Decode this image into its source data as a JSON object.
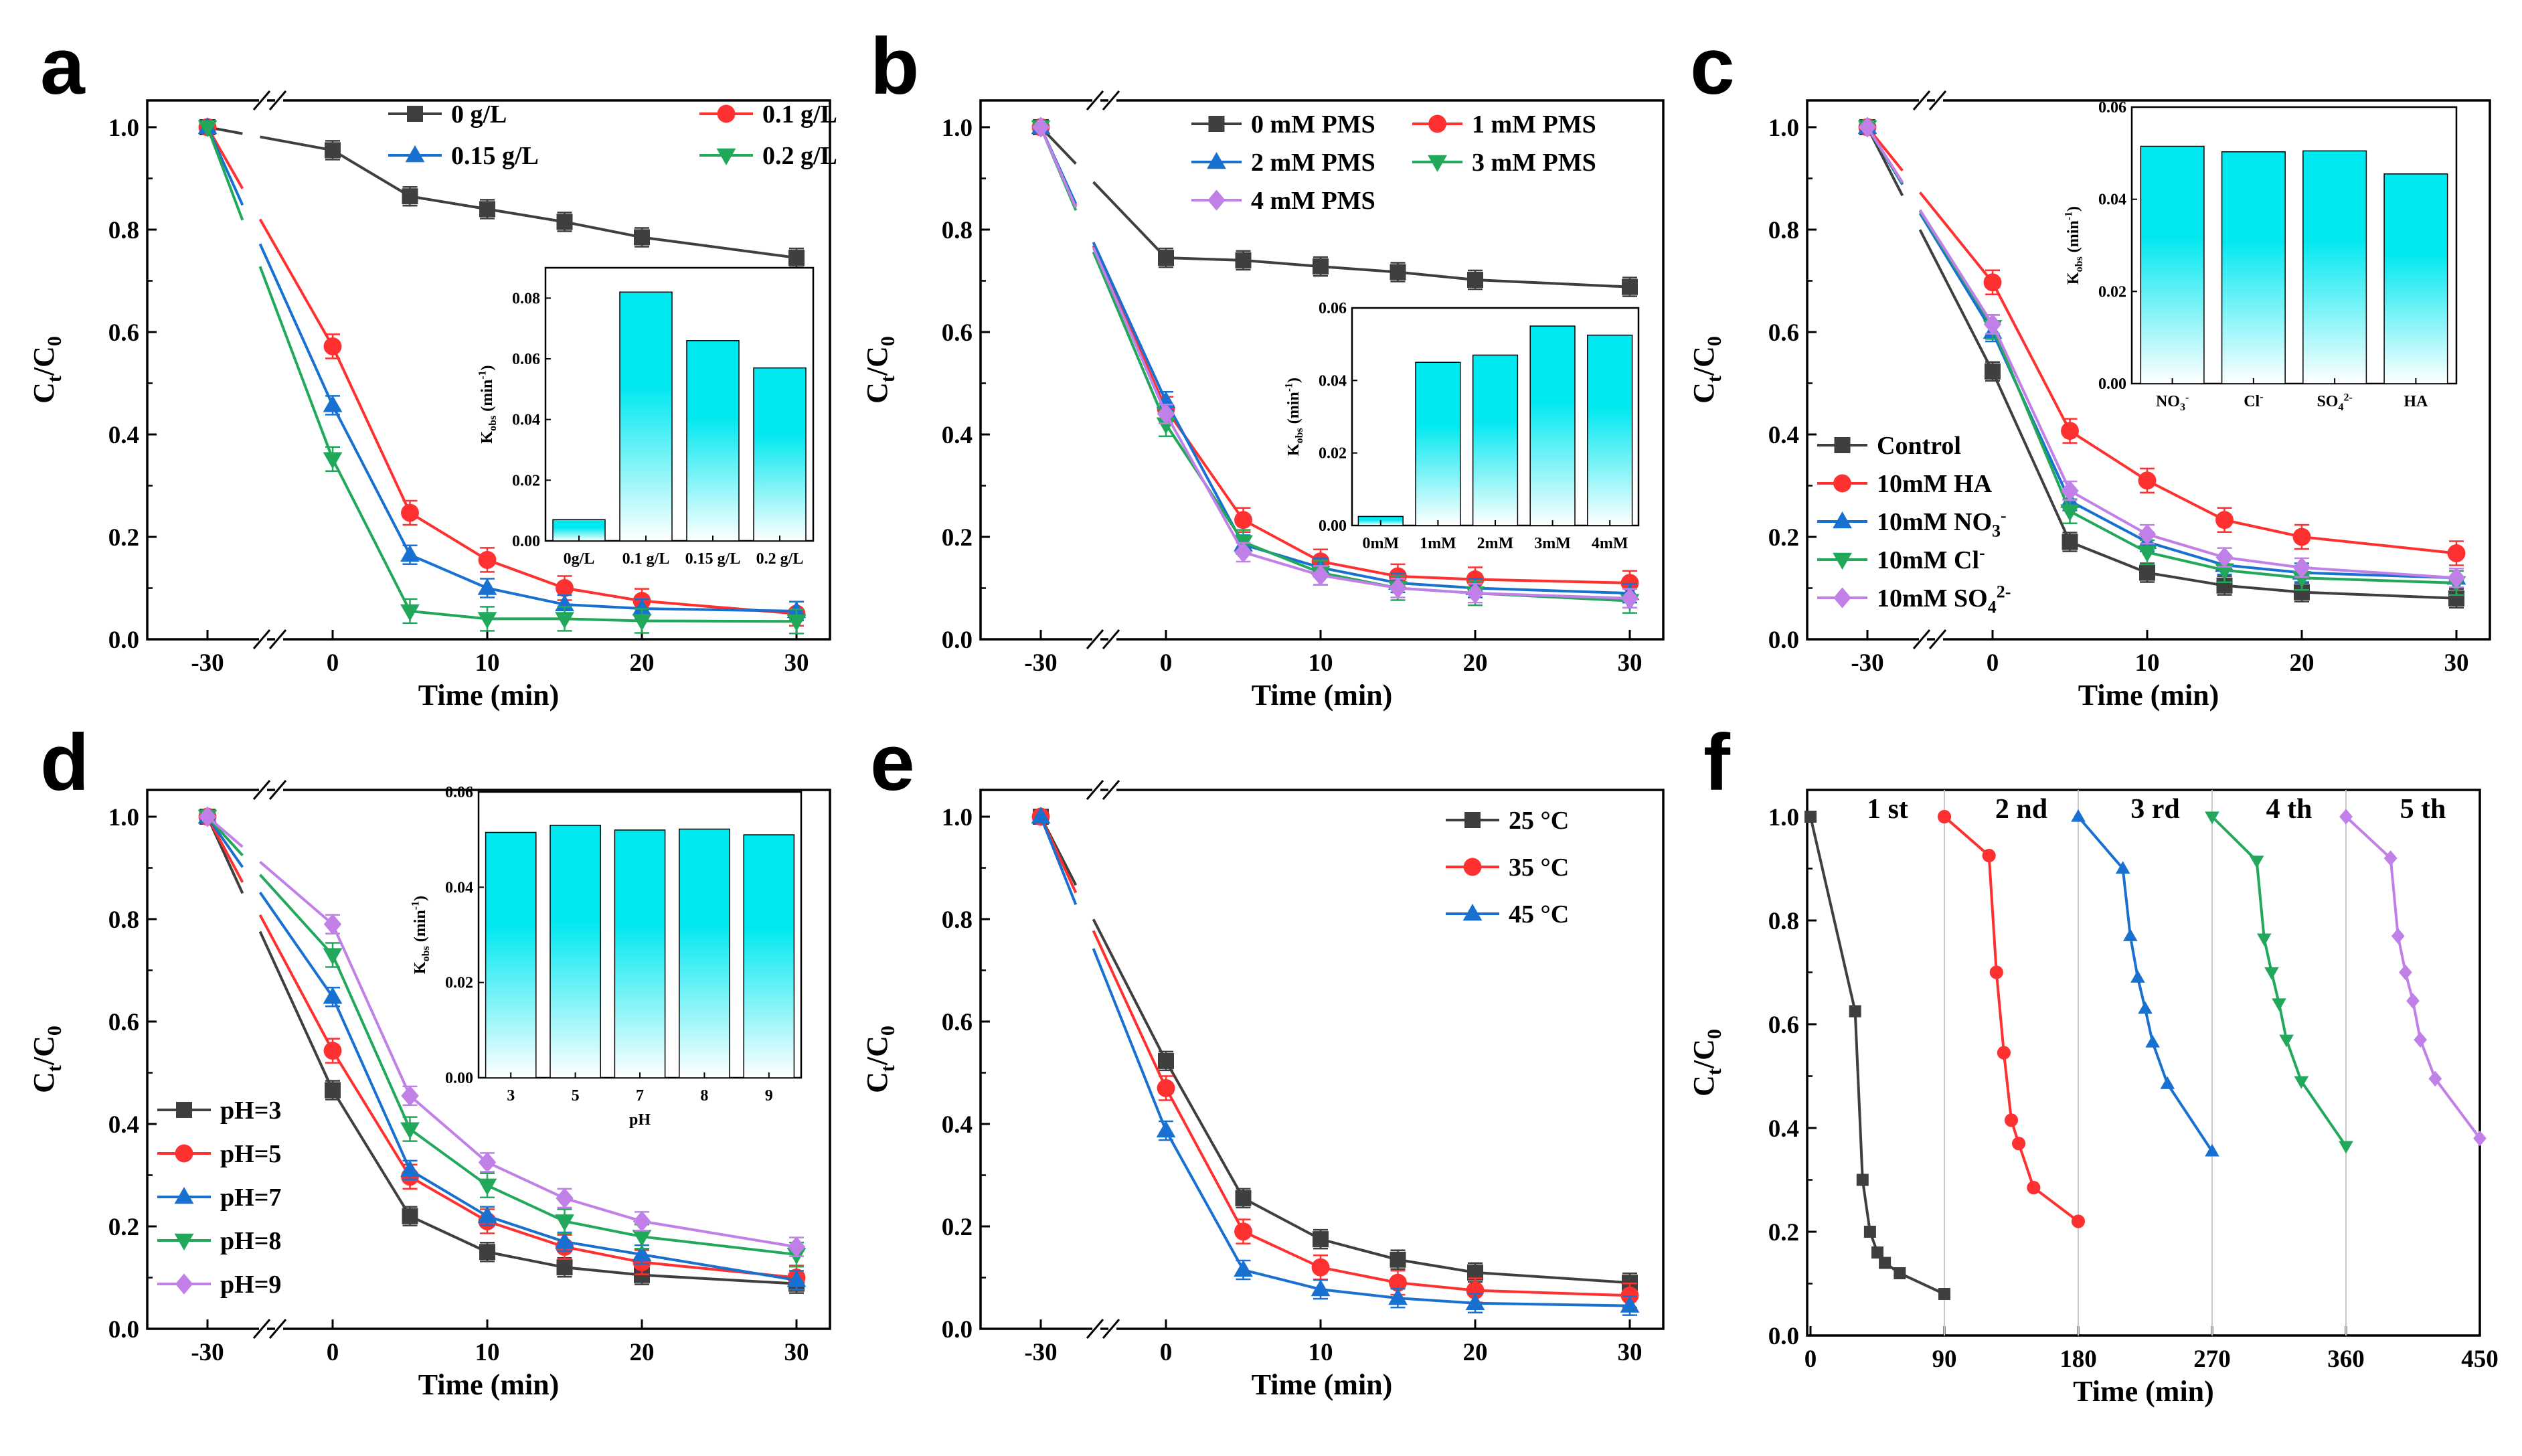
{
  "chart_data": [
    {
      "panel": "a",
      "type": "line",
      "xlabel": "Time (min)",
      "ylabel": "Ct/C0",
      "ylim": [
        0,
        1.0
      ],
      "x": [
        -30,
        0,
        5,
        10,
        15,
        20,
        30
      ],
      "x_ticks": [
        "-30",
        "0",
        "10",
        "20",
        "30"
      ],
      "y_ticks": [
        "0.0",
        "0.2",
        "0.4",
        "0.6",
        "0.8",
        "1.0"
      ],
      "legend": "top-right",
      "series": [
        {
          "name": "0     g/L",
          "color": "#3f3f3f",
          "marker": "square",
          "values": [
            1.0,
            0.955,
            0.865,
            0.84,
            0.815,
            0.785,
            0.745
          ]
        },
        {
          "name": "0.1    g/L",
          "color": "#ff3030",
          "marker": "circle",
          "values": [
            1.0,
            0.572,
            0.247,
            0.155,
            0.1,
            0.075,
            0.05
          ]
        },
        {
          "name": "0.15 g/L",
          "color": "#1870d0",
          "marker": "triangle-up",
          "values": [
            1.0,
            0.457,
            0.165,
            0.1,
            0.068,
            0.06,
            0.055
          ]
        },
        {
          "name": "0.2    g/L",
          "color": "#22a85a",
          "marker": "triangle-down",
          "values": [
            1.0,
            0.352,
            0.055,
            0.04,
            0.04,
            0.036,
            0.035
          ]
        }
      ],
      "inset": {
        "type": "bar",
        "ylabel": "Kobs (min-1)",
        "ylim": [
          0,
          0.09
        ],
        "y_ticks": [
          "0.00",
          "0.02",
          "0.04",
          "0.06",
          "0.08"
        ],
        "categories": [
          "0g/L",
          "0.1 g/L",
          "0.15 g/L",
          "0.2 g/L"
        ],
        "values": [
          0.007,
          0.082,
          0.066,
          0.057
        ]
      }
    },
    {
      "panel": "b",
      "type": "line",
      "xlabel": "Time (min)",
      "ylabel": "Ct/C0",
      "ylim": [
        0,
        1.0
      ],
      "x": [
        -30,
        0,
        5,
        10,
        15,
        20,
        30
      ],
      "x_ticks": [
        "-30",
        "0",
        "10",
        "20",
        "30"
      ],
      "y_ticks": [
        "0.0",
        "0.2",
        "0.4",
        "0.6",
        "0.8",
        "1.0"
      ],
      "legend": "top-right",
      "series": [
        {
          "name": "0 mM PMS",
          "color": "#3f3f3f",
          "marker": "square",
          "values": [
            1.0,
            0.745,
            0.74,
            0.728,
            0.717,
            0.702,
            0.688
          ]
        },
        {
          "name": "1 mM PMS",
          "color": "#ff3030",
          "marker": "circle",
          "values": [
            1.0,
            0.45,
            0.233,
            0.152,
            0.123,
            0.117,
            0.11
          ]
        },
        {
          "name": "2 mM PMS",
          "color": "#1870d0",
          "marker": "triangle-up",
          "values": [
            1.0,
            0.465,
            0.185,
            0.14,
            0.11,
            0.1,
            0.09
          ]
        },
        {
          "name": "3 mM PMS",
          "color": "#22a85a",
          "marker": "triangle-down",
          "values": [
            1.0,
            0.42,
            0.19,
            0.13,
            0.1,
            0.09,
            0.075
          ]
        },
        {
          "name": "4 mM PMS",
          "color": "#c080e8",
          "marker": "diamond",
          "values": [
            1.0,
            0.44,
            0.17,
            0.125,
            0.1,
            0.09,
            0.08
          ]
        }
      ],
      "inset": {
        "type": "bar",
        "ylabel": "Kobs (min-1)",
        "ylim": [
          0,
          0.06
        ],
        "y_ticks": [
          "0.00",
          "0.02",
          "0.04",
          "0.06"
        ],
        "categories": [
          "0mM",
          "1mM",
          "2mM",
          "3mM",
          "4mM"
        ],
        "values": [
          0.0025,
          0.045,
          0.047,
          0.055,
          0.0525
        ]
      }
    },
    {
      "panel": "c",
      "type": "line",
      "xlabel": "Time (min)",
      "ylabel": "Ct/C0",
      "ylim": [
        0,
        1.0
      ],
      "x": [
        -30,
        0,
        5,
        10,
        15,
        20,
        30
      ],
      "x_ticks": [
        "-30",
        "0",
        "10",
        "20",
        "30"
      ],
      "y_ticks": [
        "0.0",
        "0.2",
        "0.4",
        "0.6",
        "0.8",
        "1.0"
      ],
      "legend": "bottom-left",
      "series": [
        {
          "name": "Control",
          "color": "#3f3f3f",
          "marker": "square",
          "values": [
            1.0,
            0.523,
            0.19,
            0.13,
            0.105,
            0.092,
            0.08
          ]
        },
        {
          "name": "10mM HA",
          "color": "#ff3030",
          "marker": "circle",
          "values": [
            1.0,
            0.697,
            0.407,
            0.31,
            0.233,
            0.2,
            0.168
          ]
        },
        {
          "name": "10mM NO3-",
          "color": "#1870d0",
          "marker": "triangle-up",
          "values": [
            1.0,
            0.6,
            0.27,
            0.19,
            0.145,
            0.13,
            0.12
          ]
        },
        {
          "name": "10mM Cl-",
          "color": "#22a85a",
          "marker": "triangle-down",
          "values": [
            1.0,
            0.61,
            0.25,
            0.17,
            0.135,
            0.12,
            0.11
          ]
        },
        {
          "name": "10mM SO42-",
          "color": "#c080e8",
          "marker": "diamond",
          "values": [
            1.0,
            0.615,
            0.29,
            0.205,
            0.16,
            0.14,
            0.12
          ]
        }
      ],
      "inset": {
        "type": "bar",
        "ylabel": "Kobs (min-1)",
        "ylim": [
          0,
          0.06
        ],
        "y_ticks": [
          "0.00",
          "0.02",
          "0.04",
          "0.06"
        ],
        "categories": [
          "NO3-",
          "Cl-",
          "SO42-",
          "HA"
        ],
        "values": [
          0.0515,
          0.0503,
          0.0505,
          0.0455
        ]
      }
    },
    {
      "panel": "d",
      "type": "line",
      "xlabel": "Time (min)",
      "ylabel": "Ct/C0",
      "ylim": [
        0,
        1.0
      ],
      "x": [
        -30,
        0,
        5,
        10,
        15,
        20,
        30
      ],
      "x_ticks": [
        "-30",
        "0",
        "10",
        "20",
        "30"
      ],
      "y_ticks": [
        "0.0",
        "0.2",
        "0.4",
        "0.6",
        "0.8",
        "1.0"
      ],
      "legend": "bottom-left",
      "series": [
        {
          "name": "pH=3",
          "color": "#3f3f3f",
          "marker": "square",
          "values": [
            1.0,
            0.466,
            0.22,
            0.15,
            0.12,
            0.105,
            0.088
          ]
        },
        {
          "name": "pH=5",
          "color": "#ff3030",
          "marker": "circle",
          "values": [
            1.0,
            0.543,
            0.297,
            0.21,
            0.16,
            0.13,
            0.1
          ]
        },
        {
          "name": "pH=7",
          "color": "#1870d0",
          "marker": "triangle-up",
          "values": [
            1.0,
            0.648,
            0.31,
            0.22,
            0.17,
            0.145,
            0.095
          ]
        },
        {
          "name": "pH=8",
          "color": "#22a85a",
          "marker": "triangle-down",
          "values": [
            1.0,
            0.73,
            0.39,
            0.28,
            0.21,
            0.18,
            0.145
          ]
        },
        {
          "name": "pH=9",
          "color": "#c080e8",
          "marker": "diamond",
          "values": [
            1.0,
            0.79,
            0.455,
            0.325,
            0.255,
            0.21,
            0.16
          ]
        }
      ],
      "inset": {
        "type": "bar",
        "xlabel": "pH",
        "ylabel": "Kobs (min-1)",
        "ylim": [
          0,
          0.06
        ],
        "y_ticks": [
          "0.00",
          "0.02",
          "0.04",
          "0.06"
        ],
        "categories": [
          "3",
          "5",
          "7",
          "8",
          "9"
        ],
        "values": [
          0.0515,
          0.053,
          0.052,
          0.0522,
          0.051
        ]
      }
    },
    {
      "panel": "e",
      "type": "line",
      "xlabel": "Time (min)",
      "ylabel": "Ct/C0",
      "ylim": [
        0,
        1.0
      ],
      "x": [
        -30,
        0,
        5,
        10,
        15,
        20,
        30
      ],
      "x_ticks": [
        "-30",
        "0",
        "10",
        "20",
        "30"
      ],
      "y_ticks": [
        "0.0",
        "0.2",
        "0.4",
        "0.6",
        "0.8",
        "1.0"
      ],
      "legend": "top-right",
      "series": [
        {
          "name": "25 °C",
          "color": "#3f3f3f",
          "marker": "square",
          "values": [
            1.0,
            0.523,
            0.255,
            0.175,
            0.135,
            0.11,
            0.09
          ]
        },
        {
          "name": "35 °C",
          "color": "#ff3030",
          "marker": "circle",
          "values": [
            1.0,
            0.47,
            0.19,
            0.12,
            0.09,
            0.075,
            0.065
          ]
        },
        {
          "name": "45 °C",
          "color": "#1870d0",
          "marker": "triangle-up",
          "values": [
            1.0,
            0.387,
            0.115,
            0.077,
            0.06,
            0.05,
            0.045
          ]
        }
      ]
    },
    {
      "panel": "f",
      "type": "line",
      "xlabel": "Time (min)",
      "ylabel": "Ct/C0",
      "ylim": [
        0,
        1.0
      ],
      "xlim": [
        0,
        450
      ],
      "x_ticks": [
        "0",
        "90",
        "180",
        "270",
        "360",
        "450"
      ],
      "y_ticks": [
        "0.0",
        "0.2",
        "0.4",
        "0.6",
        "0.8",
        "1.0"
      ],
      "cycle_labels": [
        "1 st",
        "2 nd",
        "3 rd",
        "4 th",
        "5 th"
      ],
      "series": [
        {
          "name": "1 st",
          "color": "#3f3f3f",
          "marker": "square",
          "x": [
            0,
            30,
            35,
            40,
            45,
            50,
            60,
            90
          ],
          "values": [
            1.0,
            0.625,
            0.3,
            0.2,
            0.16,
            0.14,
            0.12,
            0.08
          ]
        },
        {
          "name": "2 nd",
          "color": "#ff3030",
          "marker": "circle",
          "x": [
            90,
            120,
            125,
            130,
            135,
            140,
            150,
            180
          ],
          "values": [
            1.0,
            0.925,
            0.7,
            0.545,
            0.415,
            0.37,
            0.285,
            0.22
          ]
        },
        {
          "name": "3 rd",
          "color": "#1870d0",
          "marker": "triangle-up",
          "x": [
            180,
            210,
            215,
            220,
            225,
            230,
            240,
            270
          ],
          "values": [
            1.0,
            0.9,
            0.77,
            0.69,
            0.63,
            0.565,
            0.485,
            0.355
          ]
        },
        {
          "name": "4 th",
          "color": "#22a85a",
          "marker": "triangle-down",
          "x": [
            270,
            300,
            305,
            310,
            315,
            320,
            330,
            360
          ],
          "values": [
            1.0,
            0.915,
            0.765,
            0.7,
            0.64,
            0.57,
            0.49,
            0.365
          ]
        },
        {
          "name": "5 th",
          "color": "#c080e8",
          "marker": "diamond",
          "x": [
            360,
            390,
            395,
            400,
            405,
            410,
            420,
            450
          ],
          "values": [
            1.0,
            0.92,
            0.77,
            0.7,
            0.645,
            0.57,
            0.495,
            0.38
          ]
        }
      ]
    }
  ]
}
